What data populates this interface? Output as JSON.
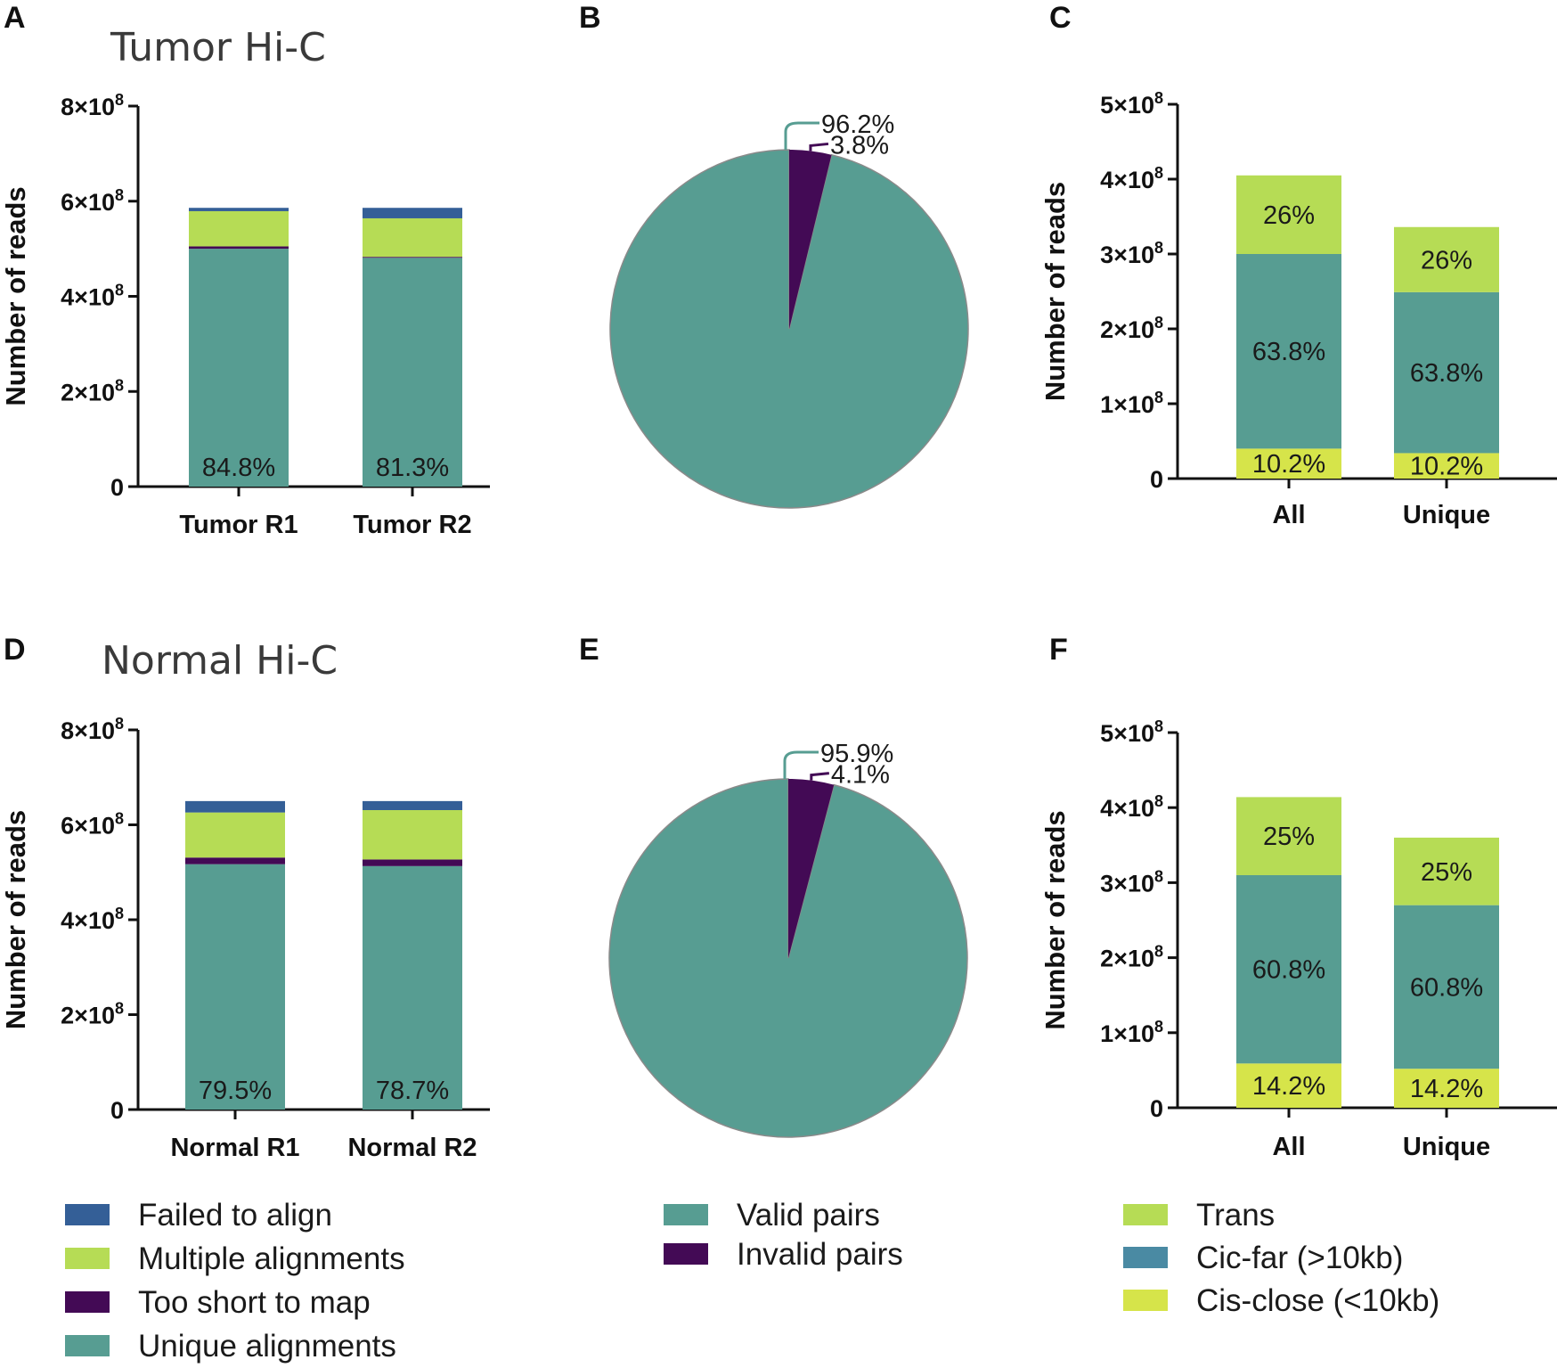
{
  "colors": {
    "failed": "#345f97",
    "multiple": "#b6dc55",
    "short": "#430a55",
    "unique": "#579d92",
    "valid": "#579d92",
    "invalid": "#430a55",
    "trans": "#b6dc55",
    "cisfar": "#579d92",
    "cisclose": "#d6e44a",
    "legend_cisfar": "#4a8aa3"
  },
  "chart_data": [
    {
      "panel": "A",
      "type": "bar",
      "stacked": true,
      "title": "Tumor Hi-C",
      "ylabel": "Number of reads",
      "ylim": [
        0,
        800000000
      ],
      "yticks": [
        {
          "value": 0,
          "base": "0",
          "exp": ""
        },
        {
          "value": 200000000,
          "base": "2×10",
          "exp": "8"
        },
        {
          "value": 400000000,
          "base": "4×10",
          "exp": "8"
        },
        {
          "value": 600000000,
          "base": "6×10",
          "exp": "8"
        },
        {
          "value": 800000000,
          "base": "8×10",
          "exp": "8"
        }
      ],
      "categories": [
        "Tumor R1",
        "Tumor R2"
      ],
      "series": [
        {
          "name": "Unique alignments",
          "color_key": "unique",
          "values": [
            500000000,
            481000000
          ],
          "labels": [
            "84.8%",
            "81.3%"
          ]
        },
        {
          "name": "Too short to map",
          "color_key": "short",
          "values": [
            5000000,
            2000000
          ],
          "labels": [
            "",
            ""
          ]
        },
        {
          "name": "Multiple alignments",
          "color_key": "multiple",
          "values": [
            74000000,
            81000000
          ],
          "labels": [
            "",
            ""
          ]
        },
        {
          "name": "Failed to align",
          "color_key": "failed",
          "values": [
            7000000,
            22000000
          ],
          "labels": [
            "",
            ""
          ]
        }
      ]
    },
    {
      "panel": "B",
      "type": "pie",
      "slices": [
        {
          "name": "Valid pairs",
          "value": 96.2,
          "label": "96.2%",
          "color_key": "valid"
        },
        {
          "name": "Invalid pairs",
          "value": 3.8,
          "label": "3.8%",
          "color_key": "invalid"
        }
      ]
    },
    {
      "panel": "C",
      "type": "bar",
      "stacked": true,
      "title": "",
      "ylabel": "Number of reads",
      "ylim": [
        0,
        500000000
      ],
      "yticks": [
        {
          "value": 0,
          "base": "0",
          "exp": ""
        },
        {
          "value": 100000000,
          "base": "1×10",
          "exp": "8"
        },
        {
          "value": 200000000,
          "base": "2×10",
          "exp": "8"
        },
        {
          "value": 300000000,
          "base": "3×10",
          "exp": "8"
        },
        {
          "value": 400000000,
          "base": "4×10",
          "exp": "8"
        },
        {
          "value": 500000000,
          "base": "5×10",
          "exp": "8"
        }
      ],
      "categories": [
        "All",
        "Unique"
      ],
      "series": [
        {
          "name": "Cis-close (<10kb)",
          "color_key": "cisclose",
          "values": [
            40000000,
            34000000
          ],
          "labels": [
            "10.2%",
            "10.2%"
          ]
        },
        {
          "name": "Cic-far (>10kb)",
          "color_key": "cisfar",
          "values": [
            260000000,
            215000000
          ],
          "labels": [
            "63.8%",
            "63.8%"
          ]
        },
        {
          "name": "Trans",
          "color_key": "trans",
          "values": [
            105000000,
            87000000
          ],
          "labels": [
            "26%",
            "26%"
          ]
        }
      ]
    },
    {
      "panel": "D",
      "type": "bar",
      "stacked": true,
      "title": "Normal Hi-C",
      "ylabel": "Number of reads",
      "ylim": [
        0,
        800000000
      ],
      "yticks": [
        {
          "value": 0,
          "base": "0",
          "exp": ""
        },
        {
          "value": 200000000,
          "base": "2×10",
          "exp": "8"
        },
        {
          "value": 400000000,
          "base": "4×10",
          "exp": "8"
        },
        {
          "value": 600000000,
          "base": "6×10",
          "exp": "8"
        },
        {
          "value": 800000000,
          "base": "8×10",
          "exp": "8"
        }
      ],
      "categories": [
        "Normal R1",
        "Normal R2"
      ],
      "series": [
        {
          "name": "Unique alignments",
          "color_key": "unique",
          "values": [
            517000000,
            513000000
          ],
          "labels": [
            "79.5%",
            "78.7%"
          ]
        },
        {
          "name": "Too short to map",
          "color_key": "short",
          "values": [
            14000000,
            14000000
          ],
          "labels": [
            "",
            ""
          ]
        },
        {
          "name": "Multiple alignments",
          "color_key": "multiple",
          "values": [
            95000000,
            104000000
          ],
          "labels": [
            "",
            ""
          ]
        },
        {
          "name": "Failed to align",
          "color_key": "failed",
          "values": [
            24000000,
            19000000
          ],
          "labels": [
            "",
            ""
          ]
        }
      ]
    },
    {
      "panel": "E",
      "type": "pie",
      "slices": [
        {
          "name": "Valid pairs",
          "value": 95.9,
          "label": "95.9%",
          "color_key": "valid"
        },
        {
          "name": "Invalid pairs",
          "value": 4.1,
          "label": "4.1%",
          "color_key": "invalid"
        }
      ]
    },
    {
      "panel": "F",
      "type": "bar",
      "stacked": true,
      "title": "",
      "ylabel": "Number of reads",
      "ylim": [
        0,
        500000000
      ],
      "yticks": [
        {
          "value": 0,
          "base": "0",
          "exp": ""
        },
        {
          "value": 100000000,
          "base": "1×10",
          "exp": "8"
        },
        {
          "value": 200000000,
          "base": "2×10",
          "exp": "8"
        },
        {
          "value": 300000000,
          "base": "3×10",
          "exp": "8"
        },
        {
          "value": 400000000,
          "base": "4×10",
          "exp": "8"
        },
        {
          "value": 500000000,
          "base": "5×10",
          "exp": "8"
        }
      ],
      "categories": [
        "All",
        "Unique"
      ],
      "series": [
        {
          "name": "Cis-close (<10kb)",
          "color_key": "cisclose",
          "values": [
            59000000,
            52000000
          ],
          "labels": [
            "14.2%",
            "14.2%"
          ]
        },
        {
          "name": "Cic-far (>10kb)",
          "color_key": "cisfar",
          "values": [
            251000000,
            218000000
          ],
          "labels": [
            "60.8%",
            "60.8%"
          ]
        },
        {
          "name": "Trans",
          "color_key": "trans",
          "values": [
            104000000,
            90000000
          ],
          "labels": [
            "25%",
            "25%"
          ]
        }
      ]
    }
  ],
  "legends": {
    "alignment": [
      {
        "label": "Failed to align",
        "color_key": "failed"
      },
      {
        "label": "Multiple alignments",
        "color_key": "multiple"
      },
      {
        "label": "Too short to map",
        "color_key": "short"
      },
      {
        "label": "Unique alignments",
        "color_key": "unique"
      }
    ],
    "pairs": [
      {
        "label": "Valid pairs",
        "color_key": "valid"
      },
      {
        "label": "Invalid pairs",
        "color_key": "invalid"
      }
    ],
    "contacts": [
      {
        "label": "Trans",
        "color_key": "trans"
      },
      {
        "label": "Cic-far (>10kb)",
        "color_key": "legend_cisfar"
      },
      {
        "label": "Cis-close (<10kb)",
        "color_key": "cisclose"
      }
    ]
  }
}
